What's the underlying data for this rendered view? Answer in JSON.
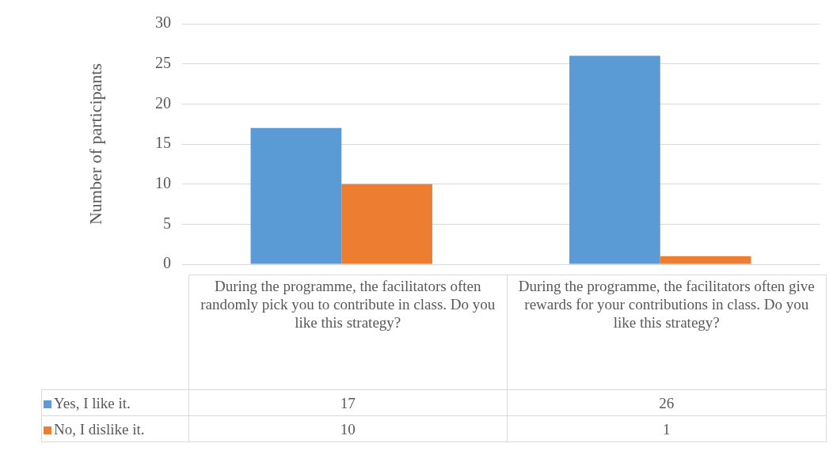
{
  "chart_data": {
    "type": "bar",
    "ylabel": "Number of participants",
    "categories": [
      "During the programme, the facilitators often randomly pick you to contribute in class. Do you like this strategy?",
      "During the programme, the facilitators often give rewards for your contributions in class. Do you like this strategy?"
    ],
    "series": [
      {
        "name": "Yes, I like it.",
        "color": "#5b9bd5",
        "values": [
          17,
          26
        ]
      },
      {
        "name": "No, I dislike it.",
        "color": "#ed7d31",
        "values": [
          10,
          1
        ]
      }
    ],
    "ylim": [
      0,
      30
    ],
    "yticks": [
      0,
      5,
      10,
      15,
      20,
      25,
      30
    ],
    "grid": "y",
    "legend": "bottom",
    "data_labels": true
  }
}
